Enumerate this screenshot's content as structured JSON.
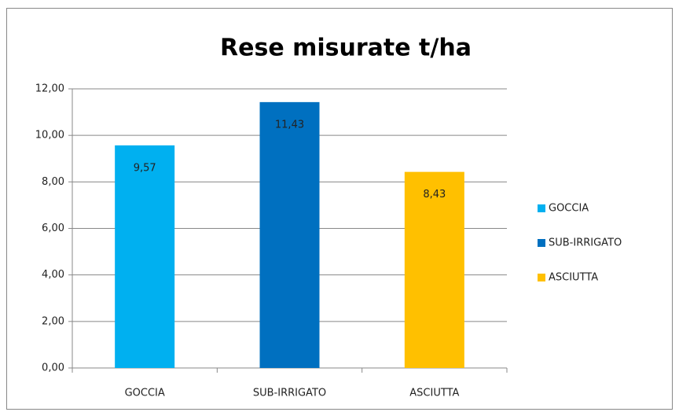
{
  "chart_data": {
    "type": "bar",
    "title": "Rese misurate t/ha",
    "categories": [
      "GOCCIA",
      "SUB-IRRIGATO",
      "ASCIUTTA"
    ],
    "values": [
      9.57,
      11.43,
      8.43
    ],
    "value_labels": [
      "9,57",
      "11,43",
      "8,43"
    ],
    "colors": [
      "#00b0f0",
      "#0070c0",
      "#ffc000"
    ],
    "ylim": [
      0,
      12
    ],
    "yticks": [
      {
        "value": 0,
        "label": "0,00"
      },
      {
        "value": 2,
        "label": "2,00"
      },
      {
        "value": 4,
        "label": "4,00"
      },
      {
        "value": 6,
        "label": "6,00"
      },
      {
        "value": 8,
        "label": "8,00"
      },
      {
        "value": 10,
        "label": "10,00"
      },
      {
        "value": 12,
        "label": "12,00"
      }
    ],
    "grid": true,
    "legend": "right"
  }
}
